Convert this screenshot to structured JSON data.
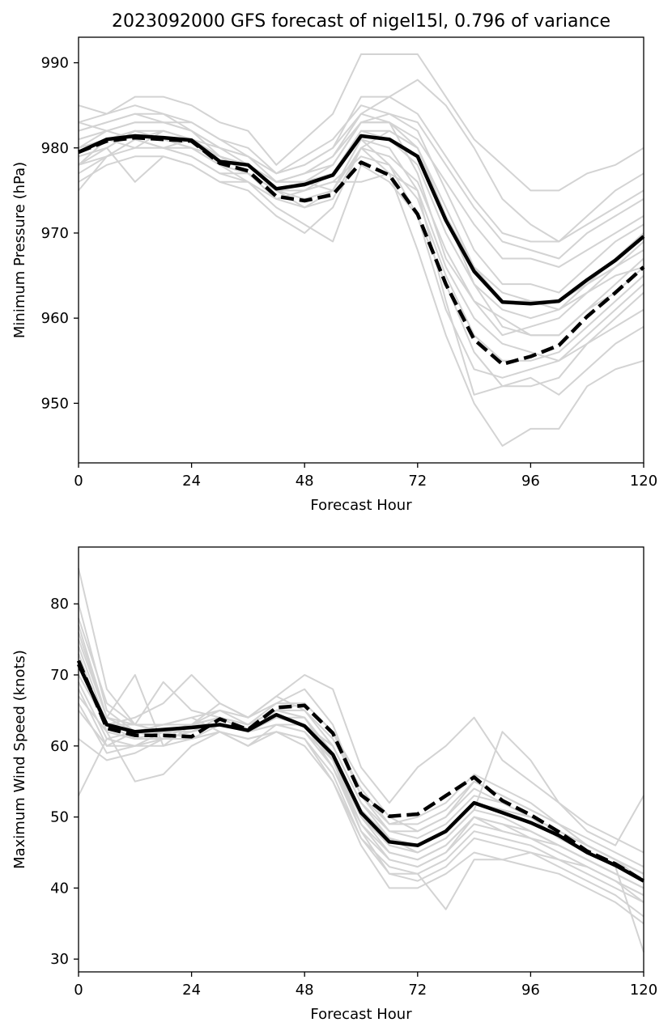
{
  "figure_title": "2023092000 GFS forecast of nigel15l, 0.796 of variance",
  "colors": {
    "ensemble": "#d3d3d3",
    "mean": "#000000",
    "dashed": "#000000"
  },
  "chart_data": [
    {
      "type": "line",
      "title": "2023092000 GFS forecast of nigel15l, 0.796 of variance",
      "xlabel": "Forecast Hour",
      "ylabel": "Minimum Pressure (hPa)",
      "xlim": [
        0,
        120
      ],
      "ylim": [
        943,
        993
      ],
      "xticks": [
        0,
        24,
        48,
        72,
        96,
        120
      ],
      "yticks": [
        950,
        960,
        970,
        980,
        990
      ],
      "grid": false,
      "x": [
        0,
        6,
        12,
        18,
        24,
        30,
        36,
        42,
        48,
        54,
        60,
        66,
        72,
        78,
        84,
        90,
        96,
        102,
        108,
        114,
        120
      ],
      "series": [
        {
          "style": "solid-black",
          "values": [
            979.5,
            981,
            981.4,
            981.2,
            980.9,
            978.4,
            978,
            975.2,
            975.7,
            976.8,
            981.4,
            981,
            979,
            971.5,
            965.5,
            961.9,
            961.7,
            962,
            964.5,
            966.8,
            969.6
          ]
        },
        {
          "style": "dashed-black",
          "values": [
            979.5,
            980.8,
            981.2,
            981,
            980.8,
            978.2,
            977.3,
            974.3,
            973.8,
            974.5,
            978.3,
            976.8,
            972.2,
            964,
            957.5,
            954.6,
            955.5,
            956.8,
            960.2,
            963,
            966
          ]
        },
        {
          "style": "ensemble",
          "values": [
            975,
            979,
            981,
            980,
            979,
            977,
            976,
            973,
            971,
            969,
            978,
            976,
            972,
            964,
            956,
            952,
            952,
            953,
            957,
            959,
            961
          ]
        },
        {
          "style": "ensemble",
          "values": [
            976,
            978,
            979,
            979,
            978,
            976,
            975,
            972,
            970,
            973,
            980,
            977,
            968,
            958,
            950,
            945,
            947,
            947,
            952,
            954,
            955
          ]
        },
        {
          "style": "ensemble",
          "values": [
            978,
            980,
            982,
            981,
            980,
            978,
            977,
            975,
            973,
            974,
            980,
            982,
            980,
            973,
            966,
            962,
            962,
            961,
            963,
            965,
            966
          ]
        },
        {
          "style": "ensemble",
          "values": [
            980,
            982,
            983,
            983,
            982,
            980,
            979,
            976,
            977,
            978,
            983,
            983,
            981,
            976,
            971,
            967,
            967,
            966,
            968,
            970,
            972
          ]
        },
        {
          "style": "ensemble",
          "values": [
            982,
            983,
            984,
            983,
            983,
            981,
            980,
            977,
            978,
            980,
            986,
            986,
            984,
            979,
            974,
            970,
            969,
            969,
            971,
            973,
            975
          ]
        },
        {
          "style": "ensemble",
          "values": [
            985,
            984,
            986,
            986,
            985,
            983,
            982,
            978,
            981,
            984,
            991,
            991,
            991,
            986,
            981,
            978,
            975,
            975,
            977,
            978,
            980
          ]
        },
        {
          "style": "ensemble",
          "values": [
            983,
            982,
            981,
            980,
            980,
            978,
            977,
            974,
            975,
            977,
            982,
            982,
            980,
            972,
            964,
            959,
            958,
            958,
            961,
            964,
            967
          ]
        },
        {
          "style": "ensemble",
          "values": [
            977,
            979,
            980,
            980,
            981,
            979,
            978,
            976,
            976,
            975,
            981,
            980,
            975,
            962,
            951,
            952,
            953,
            951,
            954,
            957,
            959
          ]
        },
        {
          "style": "ensemble",
          "values": [
            981,
            982,
            983,
            983,
            982,
            980,
            978,
            976,
            977,
            979,
            984,
            986,
            988,
            985,
            980,
            974,
            971,
            969,
            972,
            975,
            977
          ]
        },
        {
          "style": "ensemble",
          "values": [
            979,
            980,
            976,
            979,
            978,
            976,
            976,
            974,
            975,
            976,
            976,
            977,
            975,
            966,
            960,
            957,
            956,
            955,
            957,
            960,
            963
          ]
        },
        {
          "style": "ensemble",
          "values": [
            983,
            984,
            985,
            984,
            983,
            981,
            979,
            977,
            979,
            981,
            985,
            984,
            982,
            975,
            968,
            964,
            964,
            963,
            966,
            969,
            971
          ]
        },
        {
          "style": "ensemble",
          "values": [
            978,
            981,
            982,
            982,
            981,
            979,
            977,
            975,
            974,
            975,
            981,
            978,
            972,
            961,
            954,
            953,
            954,
            955,
            958,
            961,
            964
          ]
        },
        {
          "style": "ensemble",
          "values": [
            980,
            981,
            980,
            982,
            981,
            980,
            979,
            977,
            978,
            980,
            984,
            983,
            977,
            967,
            962,
            958,
            959,
            960,
            963,
            966,
            969
          ]
        },
        {
          "style": "ensemble",
          "values": [
            982,
            983,
            984,
            984,
            982,
            979,
            978,
            976,
            976,
            978,
            983,
            984,
            983,
            978,
            973,
            969,
            968,
            967,
            970,
            972,
            974
          ]
        },
        {
          "style": "ensemble",
          "values": [
            979,
            980,
            982,
            981,
            980,
            978,
            976,
            974,
            973,
            975,
            980,
            979,
            976,
            968,
            962,
            960,
            958,
            958,
            961,
            963,
            966
          ]
        },
        {
          "style": "ensemble",
          "values": [
            981,
            982,
            981,
            980,
            979,
            977,
            977,
            975,
            976,
            977,
            982,
            981,
            978,
            970,
            964,
            961,
            960,
            961,
            964,
            967,
            970
          ]
        },
        {
          "style": "ensemble",
          "values": [
            978,
            979,
            981,
            982,
            981,
            979,
            978,
            976,
            977,
            979,
            983,
            983,
            980,
            972,
            966,
            963,
            962,
            962,
            964,
            966,
            968
          ]
        },
        {
          "style": "ensemble",
          "values": [
            980,
            981,
            982,
            981,
            980,
            979,
            978,
            975,
            975,
            976,
            979,
            978,
            974,
            965,
            958,
            955,
            955,
            956,
            959,
            962,
            965
          ]
        }
      ]
    },
    {
      "type": "line",
      "title": "",
      "xlabel": "Forecast Hour",
      "ylabel": "Maximum Wind Speed (knots)",
      "xlim": [
        0,
        120
      ],
      "ylim": [
        28.2,
        88
      ],
      "xticks": [
        0,
        24,
        48,
        72,
        96,
        120
      ],
      "yticks": [
        30,
        40,
        50,
        60,
        70,
        80
      ],
      "grid": false,
      "x": [
        0,
        6,
        12,
        18,
        24,
        30,
        36,
        42,
        48,
        54,
        60,
        66,
        72,
        78,
        84,
        90,
        96,
        102,
        108,
        114,
        120
      ],
      "series": [
        {
          "style": "solid-black",
          "values": [
            71.5,
            63,
            62,
            62.3,
            62.6,
            63,
            62.2,
            64.4,
            62.8,
            58.8,
            50.6,
            46.5,
            46,
            48,
            52,
            50.6,
            49.2,
            47.4,
            45,
            43.2,
            41
          ]
        },
        {
          "style": "dashed-black",
          "values": [
            72,
            62.5,
            61.5,
            61.5,
            61.3,
            63.8,
            62.3,
            65.4,
            65.7,
            61.8,
            53.1,
            50.1,
            50.4,
            53,
            55.6,
            52.3,
            50.3,
            47.9,
            45.2,
            43.4,
            41
          ]
        },
        {
          "style": "ensemble",
          "values": [
            85,
            68,
            63,
            62,
            61,
            63,
            62,
            64,
            63,
            60,
            52,
            47,
            45,
            47,
            51,
            50,
            48,
            46,
            44,
            42,
            40
          ]
        },
        {
          "style": "ensemble",
          "values": [
            80,
            65,
            62,
            61,
            62,
            64,
            63,
            65,
            64,
            58,
            48,
            44,
            43,
            45,
            50,
            48,
            47,
            45,
            43,
            41,
            38
          ]
        },
        {
          "style": "ensemble",
          "values": [
            75,
            64,
            70,
            60,
            63,
            65,
            64,
            66,
            66,
            62,
            55,
            50,
            48,
            50,
            54,
            52,
            50,
            48,
            46,
            44,
            42
          ]
        },
        {
          "style": "ensemble",
          "values": [
            72,
            62,
            55,
            56,
            60,
            62,
            60,
            63,
            62,
            57,
            48,
            42,
            41,
            43,
            47,
            46,
            45,
            43,
            41,
            39,
            36
          ]
        },
        {
          "style": "ensemble",
          "values": [
            70,
            63,
            64,
            66,
            70,
            66,
            64,
            67,
            70,
            68,
            57,
            52,
            57,
            60,
            64,
            58,
            55,
            52,
            49,
            47,
            45
          ]
        },
        {
          "style": "ensemble",
          "values": [
            68,
            60,
            62,
            63,
            64,
            62,
            60,
            62,
            60,
            55,
            46,
            40,
            40,
            42,
            45,
            44,
            43,
            42,
            40,
            38,
            35
          ]
        },
        {
          "style": "ensemble",
          "values": [
            53,
            61,
            60,
            62,
            63,
            64,
            62,
            64,
            64,
            59,
            51,
            47,
            46,
            48,
            52,
            51,
            50,
            48,
            46,
            44,
            41
          ]
        },
        {
          "style": "ensemble",
          "values": [
            78,
            66,
            63,
            69,
            65,
            64,
            63,
            66,
            68,
            63,
            53,
            48,
            48,
            50,
            55,
            53,
            51,
            49,
            47,
            45,
            43
          ]
        },
        {
          "style": "ensemble",
          "values": [
            74,
            63,
            61,
            62,
            62,
            63,
            62,
            64,
            63,
            58,
            50,
            45,
            44,
            46,
            50,
            49,
            48,
            46,
            44,
            42,
            40
          ]
        },
        {
          "style": "ensemble",
          "values": [
            66,
            59,
            60,
            60,
            61,
            62,
            61,
            62,
            61,
            55,
            47,
            42,
            42,
            37,
            44,
            44,
            45,
            44,
            43,
            41,
            39
          ]
        },
        {
          "style": "ensemble",
          "values": [
            61,
            58,
            59,
            61,
            63,
            66,
            64,
            67,
            65,
            60,
            52,
            48,
            47,
            49,
            53,
            52,
            50,
            47,
            45,
            43,
            31
          ]
        },
        {
          "style": "ensemble",
          "values": [
            76,
            64,
            62,
            63,
            64,
            65,
            63,
            65,
            65,
            61,
            54,
            49,
            50,
            52,
            56,
            54,
            52,
            49,
            46,
            44,
            42
          ]
        },
        {
          "style": "ensemble",
          "values": [
            73,
            62,
            61,
            61,
            62,
            63,
            62,
            63,
            62,
            58,
            50,
            46,
            45,
            47,
            51,
            62,
            58,
            52,
            48,
            46,
            53
          ]
        },
        {
          "style": "ensemble",
          "values": [
            69,
            61,
            62,
            62,
            62,
            64,
            62,
            64,
            63,
            58,
            49,
            45,
            44,
            46,
            50,
            49,
            47,
            46,
            44,
            42,
            40
          ]
        },
        {
          "style": "ensemble",
          "values": [
            71,
            63,
            63,
            62,
            63,
            63,
            62,
            65,
            64,
            59,
            51,
            47,
            46,
            48,
            52,
            51,
            50,
            48,
            46,
            44,
            42
          ]
        },
        {
          "style": "ensemble",
          "values": [
            67,
            62,
            61,
            62,
            62,
            63,
            62,
            63,
            63,
            57,
            49,
            44,
            43,
            45,
            49,
            48,
            47,
            45,
            43,
            41,
            39
          ]
        },
        {
          "style": "ensemble",
          "values": [
            77,
            64,
            63,
            63,
            63,
            64,
            63,
            65,
            66,
            62,
            53,
            49,
            49,
            51,
            55,
            53,
            51,
            49,
            46,
            44,
            42
          ]
        },
        {
          "style": "ensemble",
          "values": [
            65,
            60,
            60,
            61,
            61,
            62,
            61,
            62,
            61,
            56,
            47,
            43,
            42,
            44,
            48,
            47,
            46,
            44,
            42,
            40,
            38
          ]
        }
      ]
    }
  ]
}
